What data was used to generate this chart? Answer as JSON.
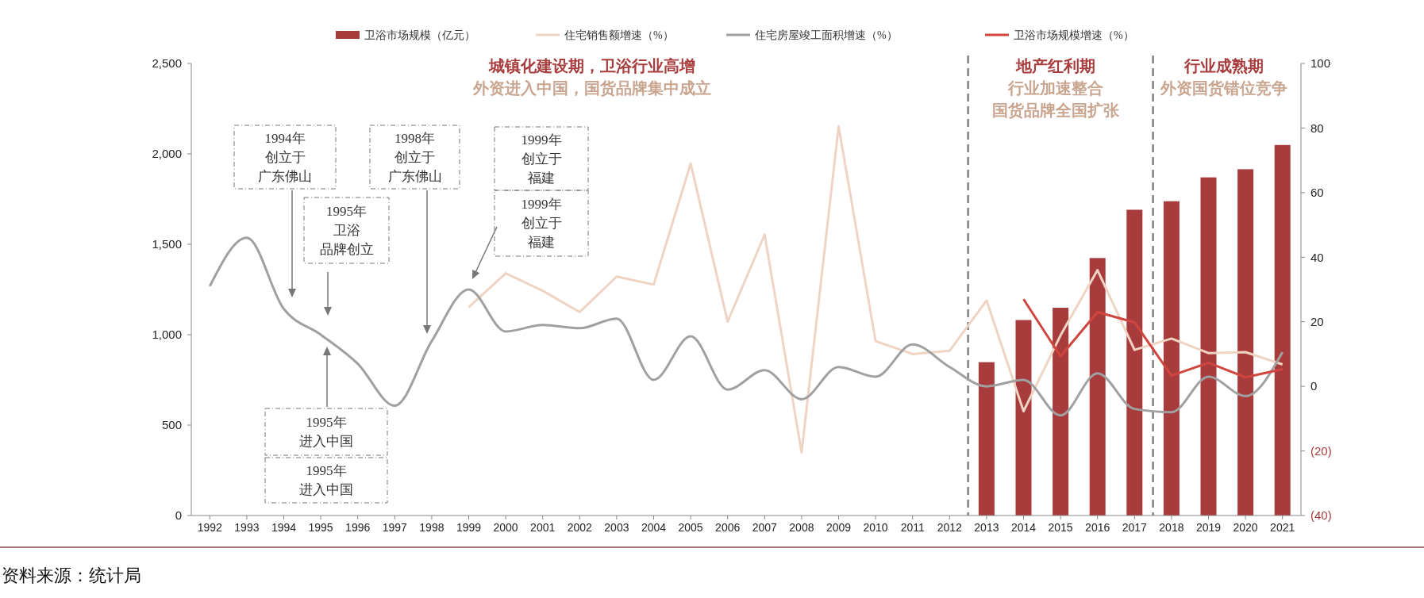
{
  "chart_data": {
    "type": "bar",
    "x": [
      1992,
      1993,
      1994,
      1995,
      1996,
      1997,
      1998,
      1999,
      2000,
      2001,
      2002,
      2003,
      2004,
      2005,
      2006,
      2007,
      2008,
      2009,
      2010,
      2011,
      2012,
      2013,
      2014,
      2015,
      2016,
      2017,
      2018,
      2019,
      2020,
      2021
    ],
    "xlim": [
      1991.5,
      2021.5
    ],
    "xticks": [
      1992,
      1993,
      1994,
      1995,
      1996,
      1997,
      1998,
      1999,
      2000,
      2001,
      2002,
      2003,
      2004,
      2005,
      2006,
      2007,
      2008,
      2009,
      2010,
      2011,
      2012,
      2013,
      2014,
      2015,
      2016,
      2017,
      2018,
      2019,
      2020,
      2021
    ],
    "ylim": [
      0,
      2500
    ],
    "yticks": [
      0,
      500,
      {
        "value": 1000,
        "label": "1,000"
      },
      {
        "value": 1500,
        "label": "1,500"
      },
      {
        "value": 2000,
        "label": "2,000"
      },
      {
        "value": 2500,
        "label": "2,500"
      }
    ],
    "y2lim": [
      -40,
      100
    ],
    "y2ticks": [
      {
        "value": -40,
        "label": "(40)"
      },
      {
        "value": -20,
        "label": "(20)"
      },
      0,
      20,
      40,
      60,
      80,
      100
    ],
    "legend": "top",
    "series": [
      {
        "name": "卫浴市场规模（亿元）",
        "color": "#a83c3c",
        "values": [
          null,
          null,
          null,
          null,
          null,
          null,
          null,
          null,
          null,
          null,
          null,
          null,
          null,
          null,
          null,
          null,
          null,
          null,
          null,
          null,
          null,
          848,
          1081,
          1149,
          1424,
          1691,
          1738,
          1870,
          1915,
          2049
        ]
      },
      {
        "name": "住宅销售额增速（%）",
        "type": "line",
        "axis": "y2",
        "color": "#efd3c3",
        "values": [
          null,
          null,
          null,
          null,
          null,
          null,
          null,
          24.5,
          35,
          29.6,
          23,
          34,
          31.5,
          69,
          20,
          47,
          -20.5,
          80.5,
          14,
          10,
          11,
          26.6,
          -7.7,
          15.8,
          36,
          11.3,
          14.8,
          10.3,
          10.6,
          6.8
        ]
      },
      {
        "name": "住宅房屋竣工面积增速（%）",
        "type": "line",
        "axis": "y2",
        "color": "#a0a0a0",
        "values": [
          31,
          46,
          24,
          16,
          7,
          -6,
          14,
          30,
          17,
          19,
          18,
          21,
          2,
          15.5,
          -1,
          5,
          -4,
          6,
          3,
          13,
          6,
          0,
          2,
          -9,
          4,
          -7,
          -8,
          3,
          -3,
          10.6
        ]
      },
      {
        "name": "卫浴市场规模增速（%）",
        "type": "line",
        "axis": "y2",
        "color": "#d0463f",
        "values": [
          null,
          null,
          null,
          null,
          null,
          null,
          null,
          null,
          null,
          null,
          null,
          null,
          null,
          null,
          null,
          null,
          null,
          null,
          null,
          null,
          null,
          null,
          27,
          9.3,
          23,
          19.8,
          3.3,
          7.3,
          2.8,
          5.3
        ]
      }
    ],
    "ref_lines": [
      {
        "axis": "x",
        "value": 2012.5,
        "color": "#808080",
        "line_style": "dashed"
      },
      {
        "axis": "x",
        "value": 2017.5,
        "color": "#808080",
        "line_style": "dashed"
      }
    ],
    "annotations": [
      "城镇化建设期，卫浴行业高增",
      "外资进入中国，国货品牌集中成立",
      "地产红利期",
      "行业加速整合",
      "国货品牌全国扩张",
      "行业成熟期",
      "外资国货错位竞争",
      "1994年创立于广东佛山",
      "1995年卫浴品牌创立",
      "1998年创立于广东佛山",
      "1999年创立于福建",
      "1999年创立于福建",
      "1995年进入中国",
      "1995年进入中国",
      "资料来源：统计局"
    ]
  }
}
